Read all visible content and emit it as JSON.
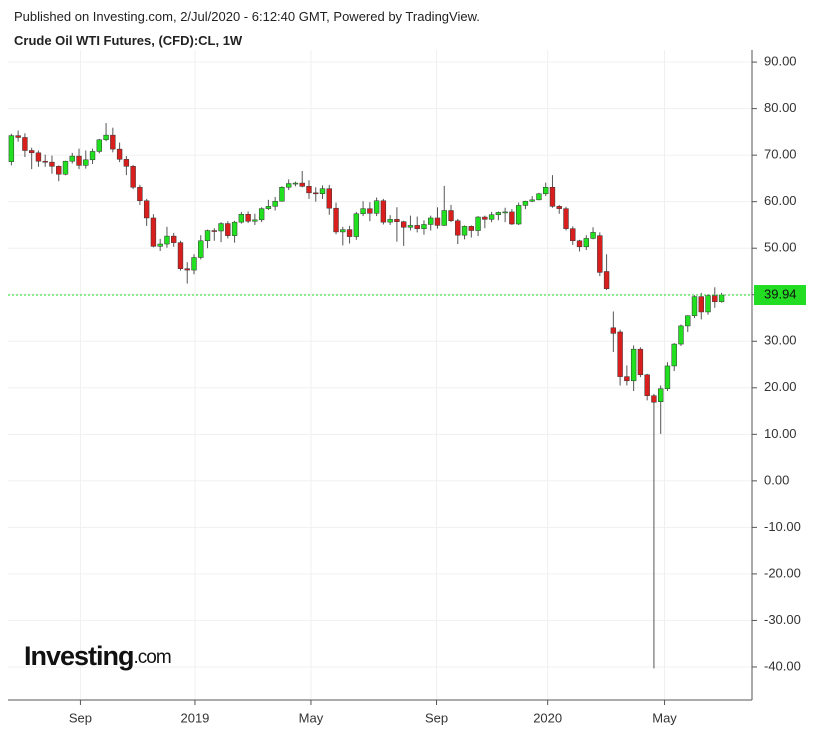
{
  "header": {
    "published": "Published on Investing.com, 2/Jul/2020 - 6:12:40 GMT, Powered by TradingView.",
    "title": "Crude Oil WTI Futures, (CFD):CL, 1W"
  },
  "logo": {
    "brand": "Investing",
    "suffix": ".com"
  },
  "chart_data": {
    "type": "candlestick",
    "up_color": "#20e020",
    "down_color": "#d91e1e",
    "wick_color": "#555555",
    "grid": true,
    "price_line_color": "#22dd22",
    "xlim": [
      -0.5,
      109.5
    ],
    "xticks": [
      {
        "value": 10.21,
        "label": "Sep"
      },
      {
        "value": 27.14,
        "label": "2019"
      },
      {
        "value": 44.29,
        "label": "May"
      },
      {
        "value": 62.86,
        "label": "Sep"
      },
      {
        "value": 79.29,
        "label": "2020"
      },
      {
        "value": 96.57,
        "label": "May"
      }
    ],
    "ylim": [
      -47.1,
      92.6
    ],
    "yticks": [
      {
        "value": 90,
        "label": "90.00"
      },
      {
        "value": 80,
        "label": "80.00"
      },
      {
        "value": 70,
        "label": "70.00"
      },
      {
        "value": 60,
        "label": "60.00"
      },
      {
        "value": 50,
        "label": "50.00"
      },
      {
        "value": 40,
        "label": "40.00"
      },
      {
        "value": 30,
        "label": "30.00"
      },
      {
        "value": 20,
        "label": "20.00"
      },
      {
        "value": 10,
        "label": "10.00"
      },
      {
        "value": 0,
        "label": "0.00"
      },
      {
        "value": -10,
        "label": "-10.00"
      },
      {
        "value": -20,
        "label": "-20.00"
      },
      {
        "value": -30,
        "label": "-30.00"
      },
      {
        "value": -40,
        "label": "-40.00"
      }
    ],
    "open": [
      68.6,
      74.2,
      73.8,
      71.0,
      70.5,
      68.7,
      68.5,
      67.6,
      65.9,
      68.7,
      69.8,
      67.8,
      69.0,
      70.8,
      73.3,
      74.3,
      71.3,
      69.1,
      67.6,
      63.1,
      60.2,
      56.5,
      50.4,
      50.9,
      52.6,
      51.2,
      45.6,
      45.3,
      48.0,
      51.6,
      53.8,
      53.7,
      55.3,
      52.7,
      55.6,
      57.3,
      55.8,
      56.1,
      58.5,
      59.0,
      60.1,
      63.1,
      63.9,
      64.0,
      63.3,
      61.9,
      61.7,
      62.8,
      58.6,
      53.5,
      54.0,
      52.5,
      57.4,
      58.5,
      57.5,
      60.2,
      55.6,
      56.2,
      55.7,
      54.5,
      54.9,
      54.2,
      55.1,
      56.5,
      54.9,
      58.1,
      55.9,
      52.8,
      54.7,
      53.8,
      56.7,
      56.2,
      57.2,
      57.7,
      57.8,
      55.2,
      59.2,
      60.1,
      60.4,
      61.7,
      63.1,
      59.0,
      58.5,
      54.2,
      51.6,
      50.3,
      52.1,
      52.7,
      45.0,
      32.9,
      32.0,
      22.4,
      21.5,
      28.3,
      22.8,
      18.3,
      17.0,
      19.8,
      24.7,
      29.4,
      33.3,
      35.5,
      39.6,
      36.3,
      39.8,
      38.5
    ],
    "high": [
      74.6,
      75.3,
      74.7,
      71.6,
      71.0,
      70.1,
      69.9,
      67.8,
      68.8,
      70.5,
      71.4,
      71.0,
      71.4,
      73.5,
      76.9,
      75.9,
      72.7,
      69.8,
      67.9,
      63.6,
      60.6,
      57.3,
      52.0,
      54.6,
      53.3,
      51.6,
      47.0,
      48.7,
      52.8,
      54.0,
      54.3,
      55.6,
      55.8,
      55.9,
      57.8,
      57.9,
      57.4,
      58.8,
      60.4,
      61.0,
      63.3,
      64.8,
      64.3,
      66.6,
      64.6,
      63.1,
      63.5,
      63.6,
      59.8,
      54.6,
      54.8,
      57.8,
      60.1,
      59.9,
      60.9,
      60.6,
      57.1,
      58.8,
      55.9,
      57.0,
      56.8,
      56.0,
      57.0,
      58.8,
      63.4,
      59.3,
      56.3,
      54.9,
      54.9,
      56.9,
      57.0,
      57.8,
      57.9,
      58.7,
      58.4,
      59.8,
      60.2,
      61.2,
      61.9,
      64.1,
      65.7,
      59.3,
      58.9,
      54.7,
      51.8,
      52.8,
      54.5,
      53.4,
      48.7,
      36.4,
      32.5,
      24.8,
      29.1,
      28.7,
      23.0,
      18.7,
      20.5,
      25.5,
      29.6,
      33.6,
      35.6,
      39.9,
      40.4,
      40.1,
      41.6,
      40.4
    ],
    "low": [
      67.8,
      72.9,
      69.6,
      67.0,
      67.5,
      67.5,
      66.0,
      64.4,
      65.7,
      68.2,
      67.0,
      67.1,
      68.1,
      70.4,
      73.0,
      70.6,
      68.5,
      65.7,
      62.7,
      59.3,
      54.8,
      50.2,
      49.4,
      50.1,
      50.3,
      45.2,
      42.4,
      44.4,
      47.6,
      50.0,
      51.6,
      51.3,
      52.1,
      51.2,
      55.3,
      55.4,
      55.0,
      55.6,
      58.2,
      58.1,
      60.0,
      62.5,
      63.3,
      63.1,
      60.6,
      60.0,
      60.6,
      57.2,
      53.0,
      50.6,
      51.0,
      51.8,
      56.9,
      55.8,
      56.9,
      55.1,
      55.0,
      51.4,
      50.5,
      53.8,
      53.4,
      52.9,
      53.8,
      54.2,
      54.8,
      55.6,
      50.9,
      51.9,
      52.3,
      52.6,
      54.3,
      55.6,
      56.0,
      55.6,
      55.0,
      55.0,
      58.4,
      59.9,
      60.3,
      61.2,
      58.7,
      57.4,
      53.8,
      50.7,
      49.3,
      49.6,
      51.9,
      44.0,
      41.0,
      27.7,
      20.5,
      20.5,
      19.3,
      22.3,
      17.3,
      -40.3,
      10.1,
      19.3,
      23.6,
      29.0,
      32.0,
      35.0,
      34.7,
      35.7,
      37.2,
      38.3
    ],
    "close": [
      74.2,
      73.8,
      71.0,
      70.5,
      68.7,
      68.5,
      67.6,
      65.9,
      68.7,
      69.8,
      67.8,
      69.0,
      70.8,
      73.3,
      74.3,
      71.3,
      69.1,
      67.6,
      63.1,
      60.2,
      56.5,
      50.4,
      50.9,
      52.6,
      51.2,
      45.6,
      45.3,
      48.0,
      51.6,
      53.8,
      53.7,
      55.3,
      52.7,
      55.6,
      57.3,
      55.8,
      56.1,
      58.5,
      59.0,
      60.1,
      63.1,
      63.9,
      64.0,
      63.3,
      61.9,
      61.7,
      62.8,
      58.6,
      53.5,
      54.0,
      52.5,
      57.4,
      58.5,
      57.5,
      60.2,
      55.6,
      56.2,
      55.7,
      54.5,
      54.9,
      54.2,
      55.1,
      56.5,
      54.9,
      58.1,
      55.9,
      52.8,
      54.7,
      53.8,
      56.7,
      56.2,
      57.2,
      57.7,
      57.8,
      55.2,
      59.2,
      60.1,
      60.4,
      61.7,
      63.1,
      59.0,
      58.5,
      54.2,
      51.6,
      50.3,
      52.1,
      53.4,
      44.8,
      41.3,
      31.7,
      22.4,
      21.5,
      28.3,
      22.8,
      18.3,
      16.9,
      19.8,
      24.7,
      29.4,
      33.3,
      35.5,
      39.6,
      36.3,
      39.8,
      38.5,
      39.94
    ]
  }
}
